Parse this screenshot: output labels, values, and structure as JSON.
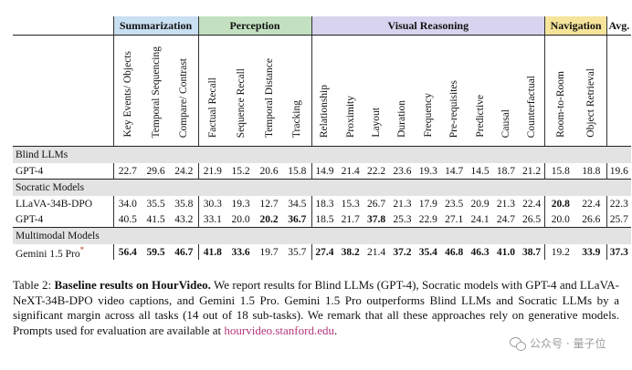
{
  "table": {
    "categories": {
      "summarization": "Summarization",
      "perception": "Perception",
      "visual_reasoning": "Visual Reasoning",
      "navigation": "Navigation",
      "avg": "Avg."
    },
    "subtasks": [
      "Key Events/ Objects",
      "Temporal Sequencing",
      "Compare/ Contrast",
      "Factual Recall",
      "Sequence Recall",
      "Temporal Distance",
      "Tracking",
      "Relationship",
      "Proximity",
      "Layout",
      "Duration",
      "Frequency",
      "Pre-requisites",
      "Predictive",
      "Causal",
      "Counterfactual",
      "Room-to-Room",
      "Object Retrieval"
    ],
    "groups": {
      "blind": "Blind LLMs",
      "socratic": "Socratic Models",
      "multimodal": "Multimodal Models"
    },
    "rows": {
      "gpt4_blind": {
        "name": "GPT-4",
        "values": [
          "22.7",
          "29.6",
          "24.2",
          "21.9",
          "15.2",
          "20.6",
          "15.8",
          "14.9",
          "21.4",
          "22.2",
          "23.6",
          "19.3",
          "14.7",
          "14.5",
          "18.7",
          "21.2",
          "15.8",
          "18.8",
          "19.6"
        ]
      },
      "llava": {
        "name": "LLaVA-34B-DPO",
        "values": [
          "34.0",
          "35.5",
          "35.8",
          "30.3",
          "19.3",
          "12.7",
          "34.5",
          "18.3",
          "15.3",
          "26.7",
          "21.3",
          "17.9",
          "23.5",
          "20.9",
          "21.3",
          "22.4",
          "20.8",
          "22.4",
          "22.3"
        ]
      },
      "gpt4_socratic": {
        "name": "GPT-4",
        "values": [
          "40.5",
          "41.5",
          "43.2",
          "33.1",
          "20.0",
          "20.2",
          "36.7",
          "18.5",
          "21.7",
          "37.8",
          "25.3",
          "22.9",
          "27.1",
          "24.1",
          "24.7",
          "26.5",
          "20.0",
          "26.6",
          "25.7"
        ]
      },
      "gemini": {
        "name": "Gemini 1.5 Pro",
        "star": "*",
        "values": [
          "56.4",
          "59.5",
          "46.7",
          "41.8",
          "33.6",
          "19.7",
          "35.7",
          "27.4",
          "38.2",
          "21.4",
          "37.2",
          "35.4",
          "46.8",
          "46.3",
          "41.0",
          "38.7",
          "19.2",
          "33.9",
          "37.3"
        ]
      }
    }
  },
  "caption": {
    "label": "Table 2:",
    "bold_title": "Baseline results on HourVideo.",
    "body": "We report results for Blind LLMs (GPT-4), Socratic models with GPT-4 and LLaVA-NeXT-34B-DPO video captions, and Gemini 1.5 Pro. Gemini 1.5 Pro outperforms Blind LLMs and Socratic LLMs by a significant margin across all tasks (14 out of 18 sub-tasks). We remark that all these approaches rely on generative models. Prompts used for evaluation are available at",
    "link": "hourvideo.stanford.edu",
    "end": "."
  },
  "watermark": {
    "icon": "wechat-icon",
    "text": "公众号 · 量子位"
  }
}
